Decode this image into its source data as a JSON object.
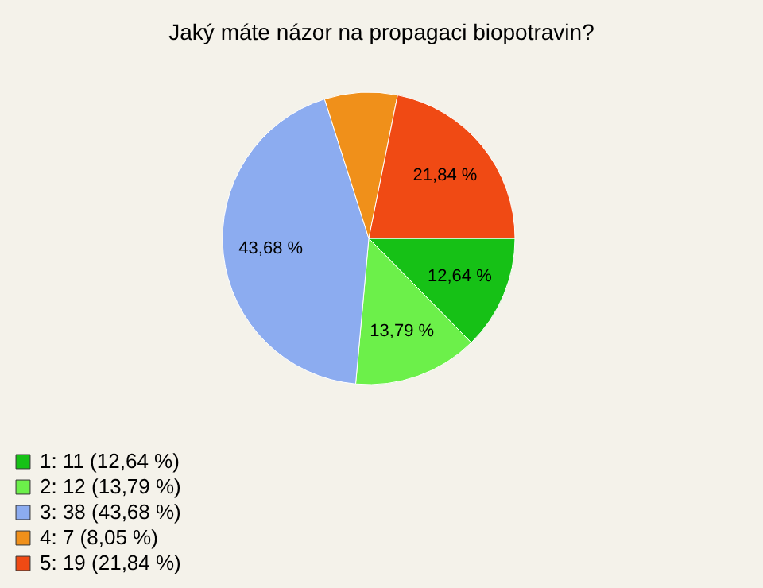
{
  "chart_data": {
    "type": "pie",
    "title": "Jaký máte názor na propagaci biopotravin?",
    "categories": [
      "1: 11 (12,64 %)",
      "2: 12 (13,79 %)",
      "3: 38 (43,68 %)",
      "4: 7 (8,05 %)",
      "5: 19 (21,84 %)"
    ],
    "values": [
      12.64,
      13.79,
      43.68,
      8.05,
      21.84
    ],
    "colors": [
      "#16c116",
      "#6cf04a",
      "#8cacf0",
      "#f0901a",
      "#f04a14"
    ],
    "value_labels": [
      "12,64 %",
      "13,79 %",
      "43,68 %",
      null,
      "21,84 %"
    ],
    "legend": "bottom left"
  }
}
